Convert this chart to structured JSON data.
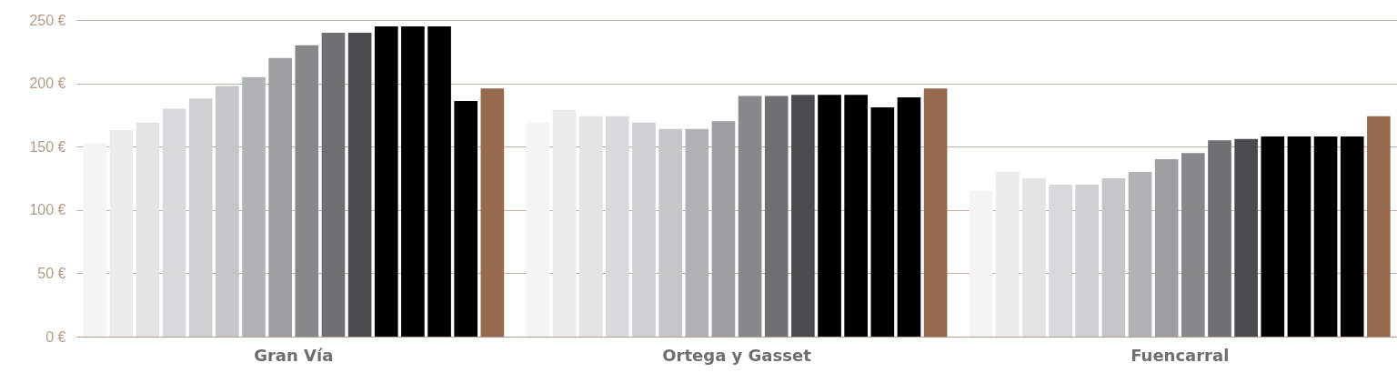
{
  "chart_data": {
    "type": "bar",
    "categories": [
      "Gran Vía",
      "Ortega y Gasset",
      "Fuencarral"
    ],
    "series": [
      {
        "color": "#f5f5f5",
        "values": [
          153,
          169,
          115
        ]
      },
      {
        "color": "#ebeceb",
        "values": [
          163,
          179,
          130
        ]
      },
      {
        "color": "#e3e4e3",
        "values": [
          169,
          174,
          125
        ]
      },
      {
        "color": "#d8d9da",
        "values": [
          180,
          174,
          120
        ]
      },
      {
        "color": "#cfd0d1",
        "values": [
          188,
          169,
          120
        ]
      },
      {
        "color": "#c5c6c7",
        "values": [
          198,
          164,
          125
        ]
      },
      {
        "color": "#b1b2b3",
        "values": [
          205,
          164,
          130
        ]
      },
      {
        "color": "#9d9ea0",
        "values": [
          220,
          170,
          140
        ]
      },
      {
        "color": "#87888a",
        "values": [
          230,
          190,
          145
        ]
      },
      {
        "color": "#6f7072",
        "values": [
          240,
          190,
          155
        ]
      },
      {
        "color": "#4c4c4e",
        "values": [
          240,
          191,
          156
        ]
      },
      {
        "color": "#000000",
        "values": [
          245,
          191,
          158
        ]
      },
      {
        "color": "#000000",
        "values": [
          245,
          191,
          158
        ]
      },
      {
        "color": "#000000",
        "values": [
          245,
          181,
          158
        ]
      },
      {
        "color": "#000000",
        "values": [
          186,
          189,
          158
        ]
      },
      {
        "color": "#966a4e",
        "values": [
          196,
          196,
          174
        ]
      }
    ],
    "ylim": [
      0,
      250
    ],
    "yticks": [
      {
        "value": 0,
        "label": "0 €"
      },
      {
        "value": 50,
        "label": "50 €"
      },
      {
        "value": 100,
        "label": "100 €"
      },
      {
        "value": 150,
        "label": "150 €"
      },
      {
        "value": 200,
        "label": "200 €"
      },
      {
        "value": 250,
        "label": "250 €"
      }
    ],
    "grid": "y",
    "legend": false
  }
}
